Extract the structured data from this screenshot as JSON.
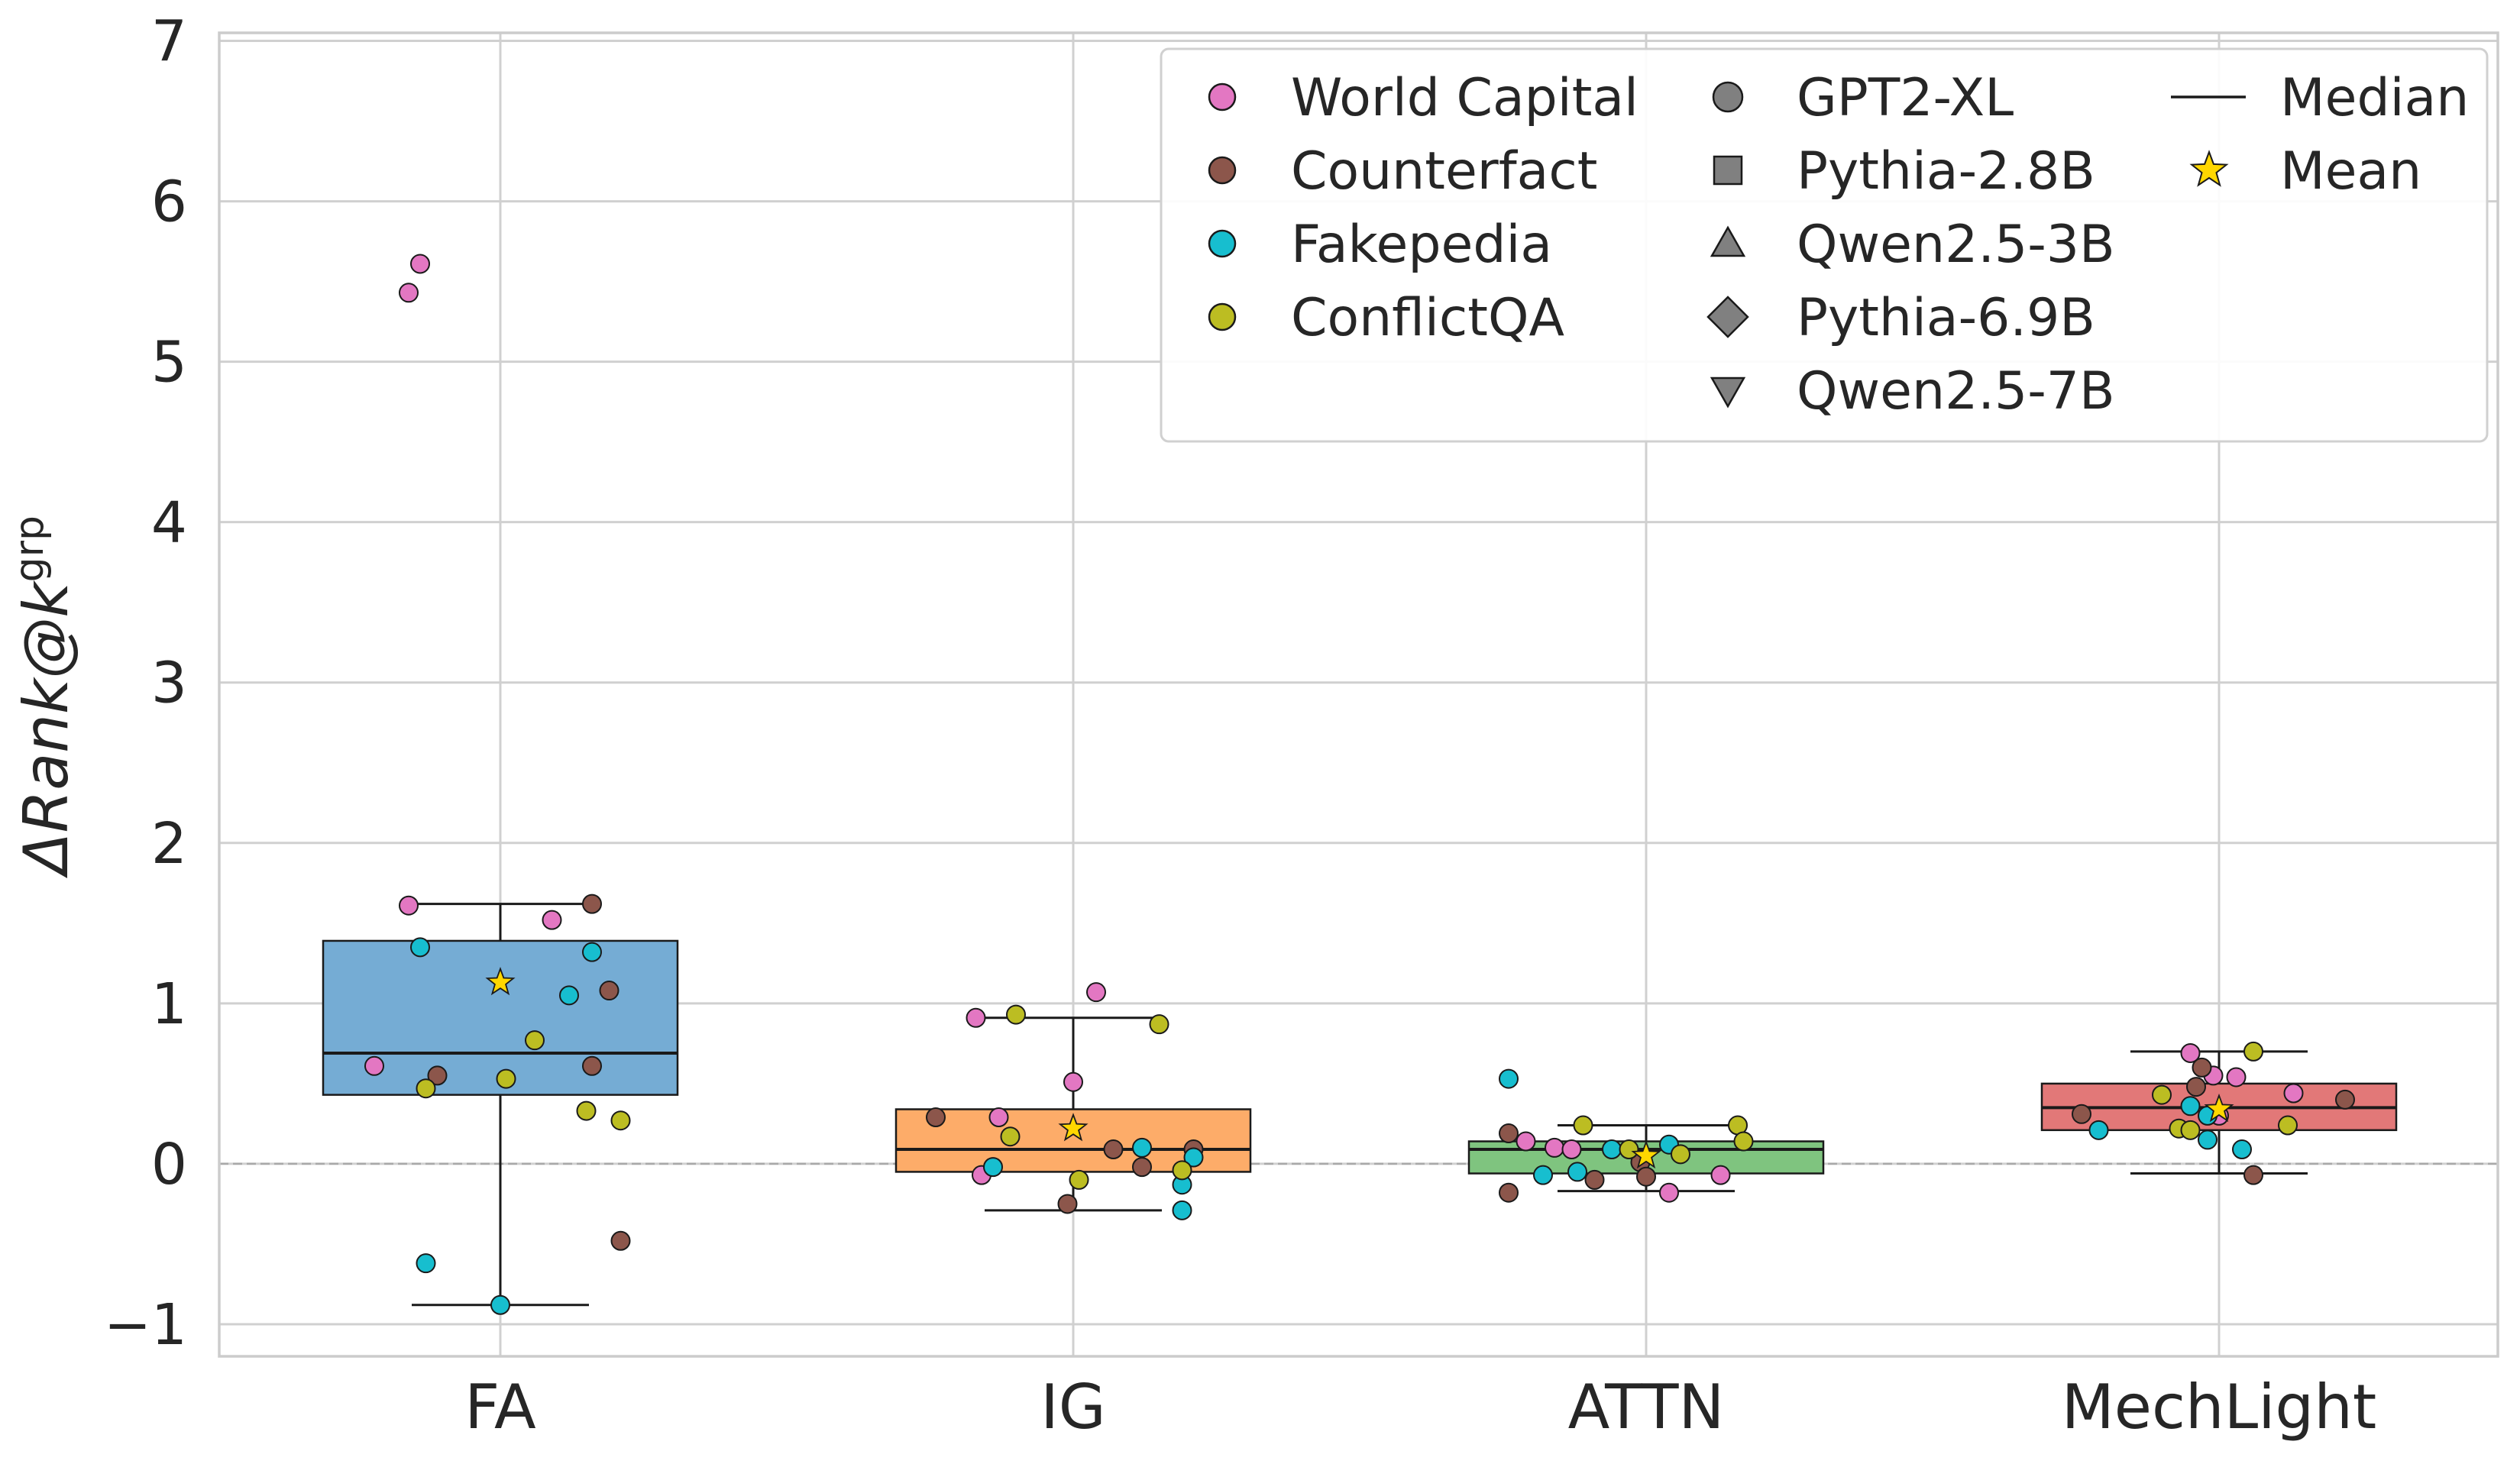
{
  "chart_data": {
    "type": "box",
    "title": "",
    "xlabel": "",
    "ylabel": "ΔRank@k",
    "ylabel_superscript": "grp",
    "ylim": [
      -1.2,
      7.05
    ],
    "yticks": [
      -1,
      0,
      1,
      2,
      3,
      4,
      5,
      6,
      7
    ],
    "ytick_labels": [
      "−1",
      "0",
      "1",
      "2",
      "3",
      "4",
      "5",
      "6",
      "7"
    ],
    "categories": [
      "FA",
      "IG",
      "ATTN",
      "MechLight"
    ],
    "box_colors": [
      "#75acd4",
      "#fdac69",
      "#7fc47f",
      "#e27878"
    ],
    "dataset_colors": {
      "World Capital": "#e377c2",
      "Counterfact": "#8c564b",
      "Fakepedia": "#17becf",
      "ConflictQA": "#bcbd22"
    },
    "mean_color": "#ffd700",
    "boxes": [
      {
        "category": "FA",
        "q1": 0.43,
        "median": 0.69,
        "q3": 1.39,
        "whisker_low": -0.88,
        "whisker_high": 1.62,
        "mean": 1.13
      },
      {
        "category": "IG",
        "q1": -0.05,
        "median": 0.09,
        "q3": 0.34,
        "whisker_low": -0.29,
        "whisker_high": 0.91,
        "mean": 0.22
      },
      {
        "category": "ATTN",
        "q1": -0.06,
        "median": 0.09,
        "q3": 0.14,
        "whisker_low": -0.17,
        "whisker_high": 0.24,
        "mean": 0.05
      },
      {
        "category": "MechLight",
        "q1": 0.21,
        "median": 0.35,
        "q3": 0.5,
        "whisker_low": -0.06,
        "whisker_high": 0.7,
        "mean": 0.34
      }
    ],
    "points": [
      {
        "category": "FA",
        "dataset": "World Capital",
        "offset": -0.16,
        "value": 5.43
      },
      {
        "category": "FA",
        "dataset": "World Capital",
        "offset": -0.14,
        "value": 5.61
      },
      {
        "category": "FA",
        "dataset": "World Capital",
        "offset": -0.16,
        "value": 1.61
      },
      {
        "category": "FA",
        "dataset": "World Capital",
        "offset": 0.09,
        "value": 1.52
      },
      {
        "category": "FA",
        "dataset": "World Capital",
        "offset": -0.22,
        "value": 0.61
      },
      {
        "category": "FA",
        "dataset": "Counterfact",
        "offset": 0.16,
        "value": 1.62
      },
      {
        "category": "FA",
        "dataset": "Counterfact",
        "offset": 0.19,
        "value": 1.08
      },
      {
        "category": "FA",
        "dataset": "Counterfact",
        "offset": -0.11,
        "value": 0.55
      },
      {
        "category": "FA",
        "dataset": "Counterfact",
        "offset": 0.16,
        "value": 0.61
      },
      {
        "category": "FA",
        "dataset": "Counterfact",
        "offset": 0.21,
        "value": -0.48
      },
      {
        "category": "FA",
        "dataset": "Fakepedia",
        "offset": -0.14,
        "value": 1.35
      },
      {
        "category": "FA",
        "dataset": "Fakepedia",
        "offset": 0.16,
        "value": 1.32
      },
      {
        "category": "FA",
        "dataset": "Fakepedia",
        "offset": 0.12,
        "value": 1.05
      },
      {
        "category": "FA",
        "dataset": "Fakepedia",
        "offset": -0.13,
        "value": -0.62
      },
      {
        "category": "FA",
        "dataset": "Fakepedia",
        "offset": 0.0,
        "value": -0.88
      },
      {
        "category": "FA",
        "dataset": "ConflictQA",
        "offset": 0.06,
        "value": 0.77
      },
      {
        "category": "FA",
        "dataset": "ConflictQA",
        "offset": 0.01,
        "value": 0.53
      },
      {
        "category": "FA",
        "dataset": "ConflictQA",
        "offset": -0.13,
        "value": 0.47
      },
      {
        "category": "FA",
        "dataset": "ConflictQA",
        "offset": 0.15,
        "value": 0.33
      },
      {
        "category": "FA",
        "dataset": "ConflictQA",
        "offset": 0.21,
        "value": 0.27
      },
      {
        "category": "IG",
        "dataset": "World Capital",
        "offset": 0.04,
        "value": 1.07
      },
      {
        "category": "IG",
        "dataset": "World Capital",
        "offset": -0.17,
        "value": 0.91
      },
      {
        "category": "IG",
        "dataset": "World Capital",
        "offset": 0.0,
        "value": 0.51
      },
      {
        "category": "IG",
        "dataset": "World Capital",
        "offset": -0.13,
        "value": 0.29
      },
      {
        "category": "IG",
        "dataset": "World Capital",
        "offset": -0.16,
        "value": -0.07
      },
      {
        "category": "IG",
        "dataset": "Counterfact",
        "offset": -0.24,
        "value": 0.29
      },
      {
        "category": "IG",
        "dataset": "Counterfact",
        "offset": 0.07,
        "value": 0.09
      },
      {
        "category": "IG",
        "dataset": "Counterfact",
        "offset": 0.21,
        "value": 0.09
      },
      {
        "category": "IG",
        "dataset": "Counterfact",
        "offset": 0.12,
        "value": -0.02
      },
      {
        "category": "IG",
        "dataset": "Counterfact",
        "offset": -0.01,
        "value": -0.25
      },
      {
        "category": "IG",
        "dataset": "Fakepedia",
        "offset": 0.12,
        "value": 0.1
      },
      {
        "category": "IG",
        "dataset": "Fakepedia",
        "offset": 0.21,
        "value": 0.04
      },
      {
        "category": "IG",
        "dataset": "Fakepedia",
        "offset": -0.14,
        "value": -0.02
      },
      {
        "category": "IG",
        "dataset": "Fakepedia",
        "offset": 0.19,
        "value": -0.13
      },
      {
        "category": "IG",
        "dataset": "Fakepedia",
        "offset": 0.19,
        "value": -0.29
      },
      {
        "category": "IG",
        "dataset": "ConflictQA",
        "offset": -0.1,
        "value": 0.93
      },
      {
        "category": "IG",
        "dataset": "ConflictQA",
        "offset": 0.15,
        "value": 0.87
      },
      {
        "category": "IG",
        "dataset": "ConflictQA",
        "offset": -0.11,
        "value": 0.17
      },
      {
        "category": "IG",
        "dataset": "ConflictQA",
        "offset": 0.19,
        "value": -0.04
      },
      {
        "category": "IG",
        "dataset": "ConflictQA",
        "offset": 0.01,
        "value": -0.1
      },
      {
        "category": "ATTN",
        "dataset": "World Capital",
        "offset": -0.21,
        "value": 0.14
      },
      {
        "category": "ATTN",
        "dataset": "World Capital",
        "offset": -0.16,
        "value": 0.1
      },
      {
        "category": "ATTN",
        "dataset": "World Capital",
        "offset": -0.13,
        "value": 0.09
      },
      {
        "category": "ATTN",
        "dataset": "World Capital",
        "offset": 0.13,
        "value": -0.07
      },
      {
        "category": "ATTN",
        "dataset": "World Capital",
        "offset": 0.04,
        "value": -0.18
      },
      {
        "category": "ATTN",
        "dataset": "Counterfact",
        "offset": -0.24,
        "value": 0.19
      },
      {
        "category": "ATTN",
        "dataset": "Counterfact",
        "offset": -0.01,
        "value": 0.01
      },
      {
        "category": "ATTN",
        "dataset": "Counterfact",
        "offset": 0.0,
        "value": -0.08
      },
      {
        "category": "ATTN",
        "dataset": "Counterfact",
        "offset": -0.09,
        "value": -0.1
      },
      {
        "category": "ATTN",
        "dataset": "Counterfact",
        "offset": -0.24,
        "value": -0.18
      },
      {
        "category": "ATTN",
        "dataset": "Fakepedia",
        "offset": -0.24,
        "value": 0.53
      },
      {
        "category": "ATTN",
        "dataset": "Fakepedia",
        "offset": 0.04,
        "value": 0.12
      },
      {
        "category": "ATTN",
        "dataset": "Fakepedia",
        "offset": -0.06,
        "value": 0.09
      },
      {
        "category": "ATTN",
        "dataset": "Fakepedia",
        "offset": -0.12,
        "value": -0.05
      },
      {
        "category": "ATTN",
        "dataset": "Fakepedia",
        "offset": -0.18,
        "value": -0.07
      },
      {
        "category": "ATTN",
        "dataset": "ConflictQA",
        "offset": -0.11,
        "value": 0.24
      },
      {
        "category": "ATTN",
        "dataset": "ConflictQA",
        "offset": 0.16,
        "value": 0.24
      },
      {
        "category": "ATTN",
        "dataset": "ConflictQA",
        "offset": 0.17,
        "value": 0.14
      },
      {
        "category": "ATTN",
        "dataset": "ConflictQA",
        "offset": -0.03,
        "value": 0.09
      },
      {
        "category": "ATTN",
        "dataset": "ConflictQA",
        "offset": 0.06,
        "value": 0.06
      },
      {
        "category": "MechLight",
        "dataset": "World Capital",
        "offset": -0.05,
        "value": 0.69
      },
      {
        "category": "MechLight",
        "dataset": "World Capital",
        "offset": -0.01,
        "value": 0.55
      },
      {
        "category": "MechLight",
        "dataset": "World Capital",
        "offset": 0.03,
        "value": 0.54
      },
      {
        "category": "MechLight",
        "dataset": "World Capital",
        "offset": 0.13,
        "value": 0.44
      },
      {
        "category": "MechLight",
        "dataset": "World Capital",
        "offset": 0.0,
        "value": 0.3
      },
      {
        "category": "MechLight",
        "dataset": "Counterfact",
        "offset": -0.03,
        "value": 0.6
      },
      {
        "category": "MechLight",
        "dataset": "Counterfact",
        "offset": -0.04,
        "value": 0.48
      },
      {
        "category": "MechLight",
        "dataset": "Counterfact",
        "offset": 0.22,
        "value": 0.4
      },
      {
        "category": "MechLight",
        "dataset": "Counterfact",
        "offset": -0.24,
        "value": 0.31
      },
      {
        "category": "MechLight",
        "dataset": "Counterfact",
        "offset": 0.06,
        "value": -0.07
      },
      {
        "category": "MechLight",
        "dataset": "Fakepedia",
        "offset": -0.05,
        "value": 0.36
      },
      {
        "category": "MechLight",
        "dataset": "Fakepedia",
        "offset": -0.21,
        "value": 0.21
      },
      {
        "category": "MechLight",
        "dataset": "Fakepedia",
        "offset": -0.02,
        "value": 0.3
      },
      {
        "category": "MechLight",
        "dataset": "Fakepedia",
        "offset": -0.02,
        "value": 0.15
      },
      {
        "category": "MechLight",
        "dataset": "Fakepedia",
        "offset": 0.04,
        "value": 0.09
      },
      {
        "category": "MechLight",
        "dataset": "ConflictQA",
        "offset": 0.06,
        "value": 0.7
      },
      {
        "category": "MechLight",
        "dataset": "ConflictQA",
        "offset": -0.1,
        "value": 0.43
      },
      {
        "category": "MechLight",
        "dataset": "ConflictQA",
        "offset": -0.07,
        "value": 0.22
      },
      {
        "category": "MechLight",
        "dataset": "ConflictQA",
        "offset": -0.05,
        "value": 0.21
      },
      {
        "category": "MechLight",
        "dataset": "ConflictQA",
        "offset": 0.12,
        "value": 0.24
      }
    ],
    "legend": {
      "location": "upper-right",
      "datasets": [
        "World Capital",
        "Counterfact",
        "Fakepedia",
        "ConflictQA"
      ],
      "models": [
        {
          "label": "GPT2-XL",
          "marker": "circle"
        },
        {
          "label": "Pythia-2.8B",
          "marker": "square"
        },
        {
          "label": "Qwen2.5-3B",
          "marker": "triangle-up"
        },
        {
          "label": "Pythia-6.9B",
          "marker": "diamond"
        },
        {
          "label": "Qwen2.5-7B",
          "marker": "triangle-down"
        }
      ],
      "median_label": "Median",
      "mean_label": "Mean"
    }
  }
}
